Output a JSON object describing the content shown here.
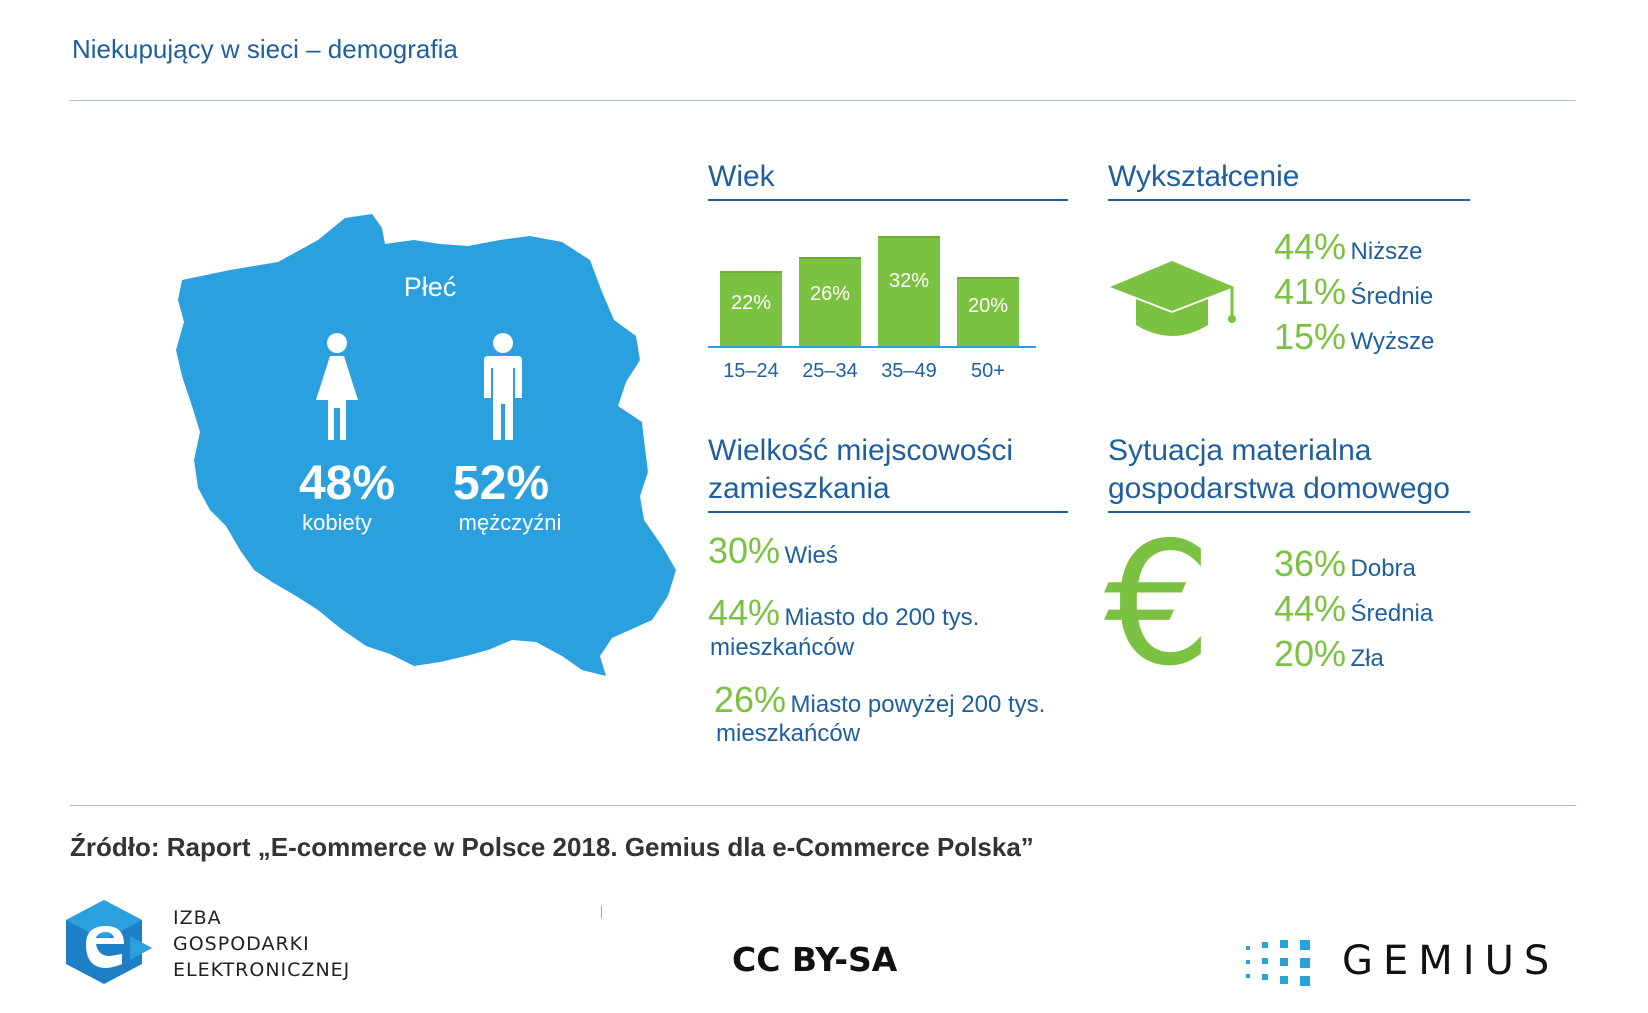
{
  "title": "Niekupujący w sieci – demografia",
  "gender": {
    "heading": "Płeć",
    "women_pct": "48%",
    "women_label": "kobiety",
    "men_pct": "52%",
    "men_label": "mężczyźni"
  },
  "age": {
    "heading": "Wiek",
    "chart_data": {
      "type": "bar",
      "title": "Wiek",
      "categories": [
        "15–24",
        "25–34",
        "35–49",
        "50+"
      ],
      "values": [
        22,
        26,
        32,
        20
      ],
      "value_labels": [
        "22%",
        "26%",
        "32%",
        "20%"
      ],
      "ylim": [
        0,
        35
      ]
    }
  },
  "education": {
    "heading": "Wykształcenie",
    "items": [
      {
        "pct": "44%",
        "label": "Niższe"
      },
      {
        "pct": "41%",
        "label": "Średnie"
      },
      {
        "pct": "15%",
        "label": "Wyższe"
      }
    ]
  },
  "town": {
    "heading_line1": "Wielkość miejscowości",
    "heading_line2": "zamieszkania",
    "items": [
      {
        "pct": "30%",
        "label": "Wieś",
        "label2": ""
      },
      {
        "pct": "44%",
        "label": "Miasto do 200 tys.",
        "label2": "mieszkańców"
      },
      {
        "pct": "26%",
        "label": "Miasto powyżej 200 tys.",
        "label2": "mieszkańców"
      }
    ]
  },
  "material": {
    "heading_line1": "Sytuacja materialna",
    "heading_line2": "gospodarstwa domowego",
    "items": [
      {
        "pct": "36%",
        "label": "Dobra"
      },
      {
        "pct": "44%",
        "label": "Średnia"
      },
      {
        "pct": "20%",
        "label": "Zła"
      }
    ]
  },
  "source": "Źródło: Raport „E-commerce w Polsce 2018. Gemius dla e-Commerce Polska”",
  "footer": {
    "izba_line1": "IZBA",
    "izba_line2": "GOSPODARKI",
    "izba_line3": "ELEKTRONICZNEJ",
    "license": "CC BY-SA",
    "gemius": "GEMIUS"
  },
  "colors": {
    "accent_blue": "#1f5f9e",
    "map_blue": "#2aa0df",
    "accent_green": "#7cc242"
  }
}
